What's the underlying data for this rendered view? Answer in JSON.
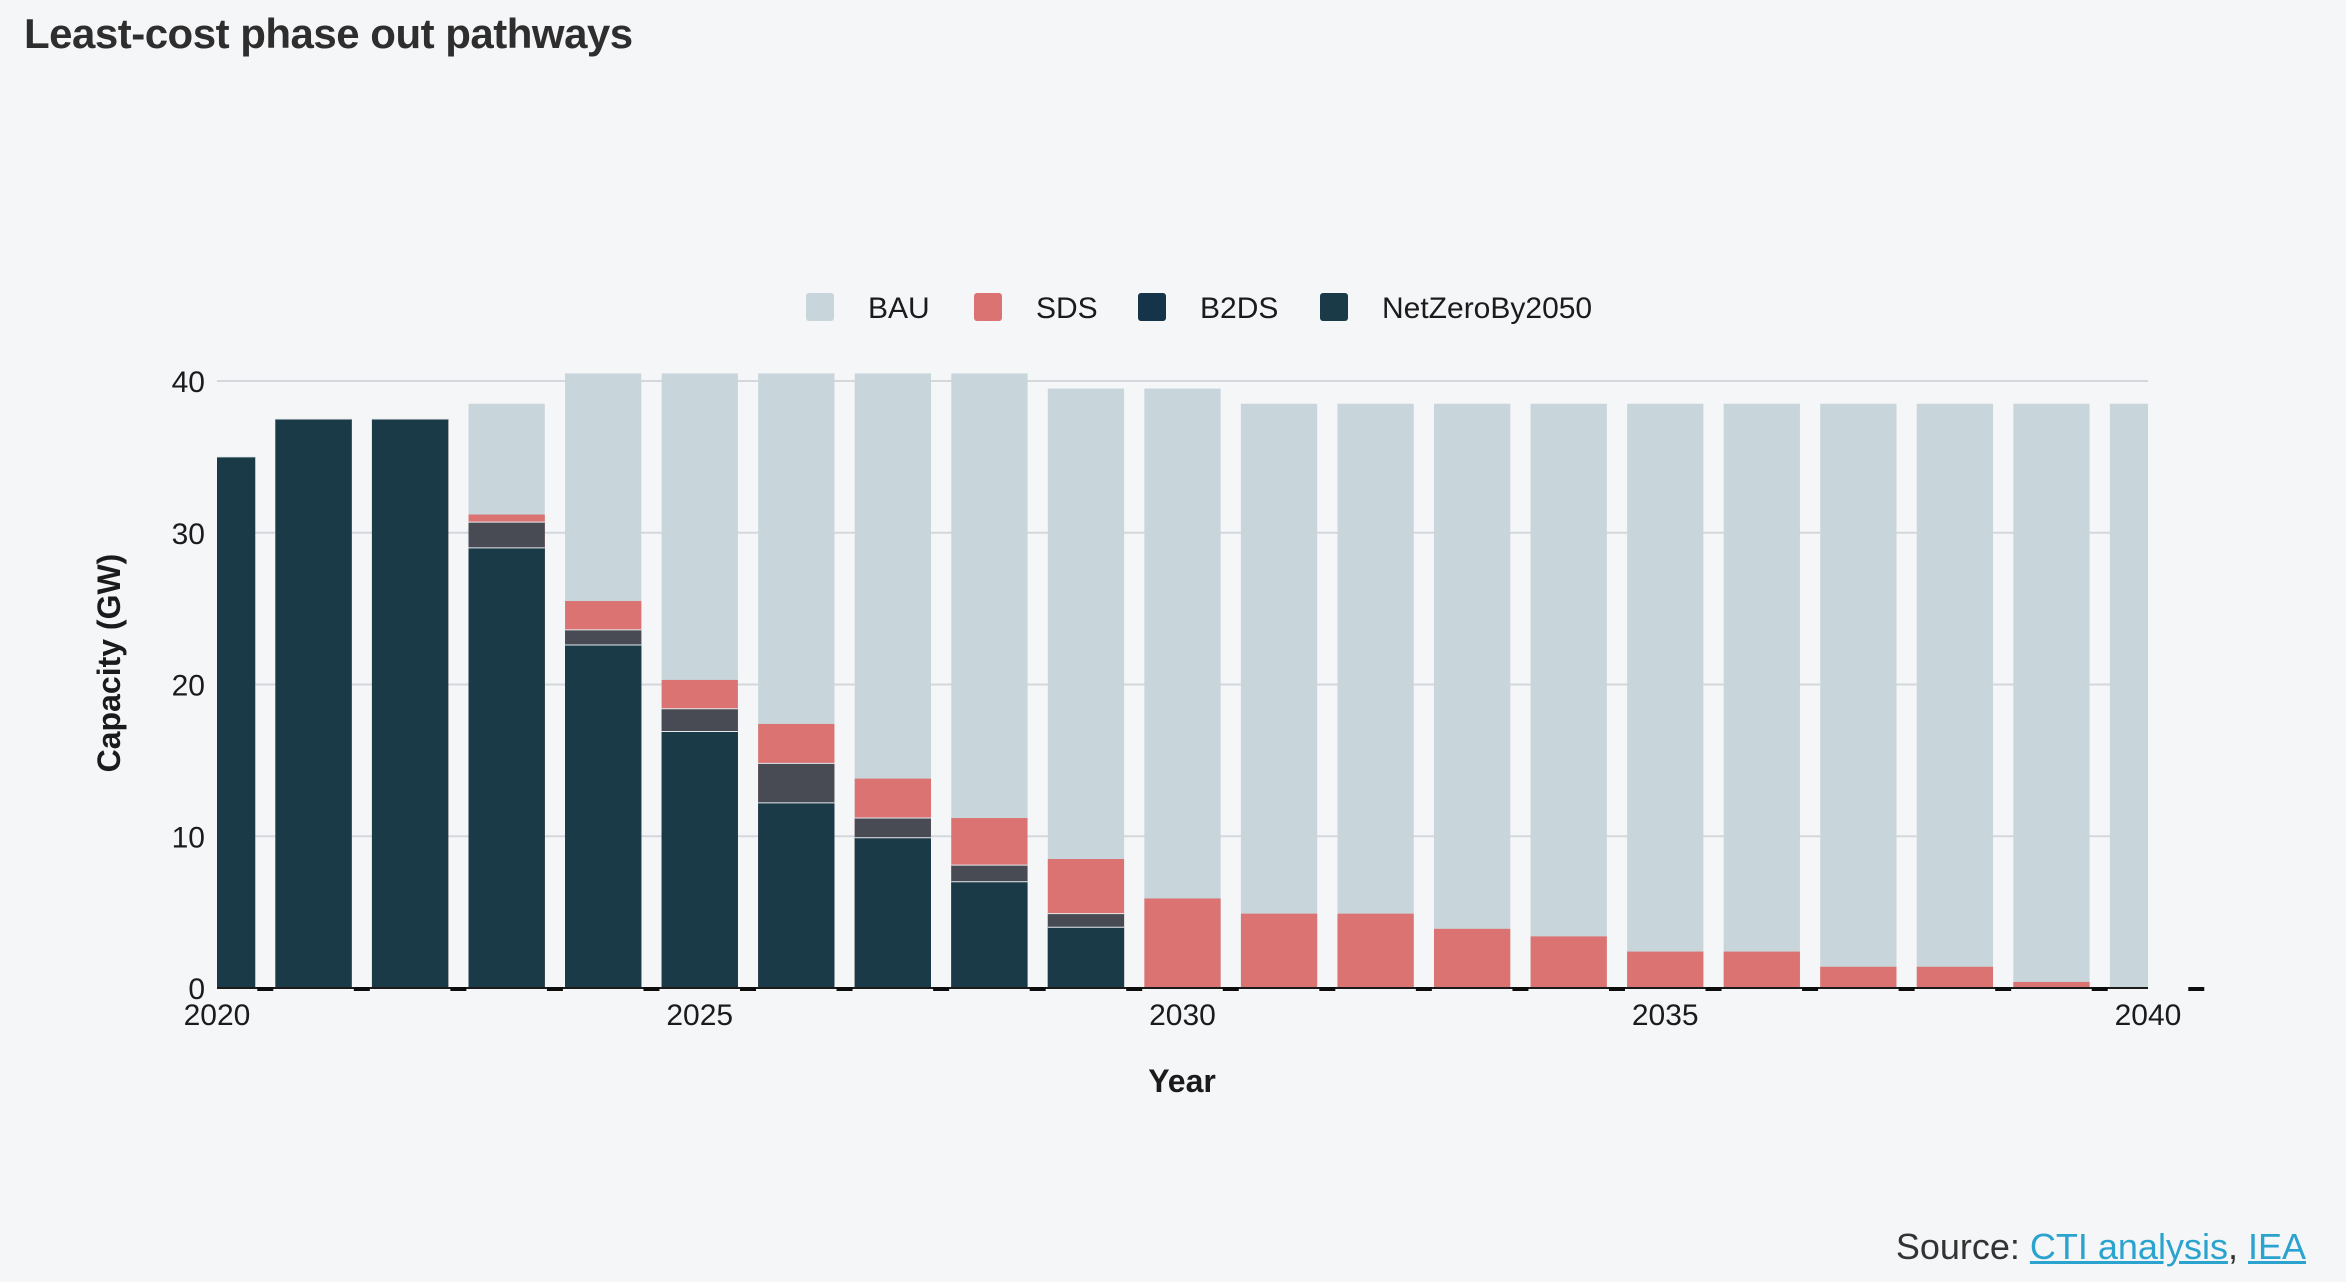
{
  "title": "Least-cost phase out pathways",
  "source": {
    "prefix": "Source: ",
    "links": [
      {
        "label": "CTI analysis"
      },
      {
        "label": "IEA"
      }
    ],
    "separator": ", "
  },
  "colors": {
    "BAU": "#c8d6dc",
    "SDS": "#db7372",
    "B2DS": "#484b54",
    "NetZeroBy2050": "#1b3a47",
    "legend_B2DS": "#163449",
    "grid": "#d4d8dc",
    "text": "#1b1b1b"
  },
  "chart_data": {
    "type": "bar",
    "stacking": "overlay",
    "xlabel": "Year",
    "ylabel": "Capacity (GW)",
    "xlim": [
      2020,
      2040
    ],
    "ylim": [
      0,
      40
    ],
    "xticks": [
      2020,
      2025,
      2030,
      2035,
      2040
    ],
    "yticks": [
      0,
      10,
      20,
      30,
      40
    ],
    "grid": true,
    "legend_position": "top-center",
    "legend": [
      "BAU",
      "SDS",
      "B2DS",
      "NetZeroBy2050"
    ],
    "x": [
      2020,
      2021,
      2022,
      2023,
      2024,
      2025,
      2026,
      2027,
      2028,
      2029,
      2030,
      2031,
      2032,
      2033,
      2034,
      2035,
      2036,
      2037,
      2038,
      2039,
      2040
    ],
    "series": [
      {
        "name": "BAU",
        "values": [
          35,
          37.5,
          37.5,
          38.5,
          40.5,
          40.5,
          40.5,
          40.5,
          40.5,
          39.5,
          39.5,
          38.5,
          38.5,
          38.5,
          38.5,
          38.5,
          38.5,
          38.5,
          38.5,
          38.5,
          38.5
        ]
      },
      {
        "name": "SDS",
        "values": [
          35,
          37.5,
          37.5,
          31.2,
          25.5,
          20.3,
          17.4,
          13.8,
          11.2,
          8.5,
          5.9,
          4.9,
          4.9,
          3.9,
          3.4,
          2.4,
          2.4,
          1.4,
          1.4,
          0.4,
          0
        ]
      },
      {
        "name": "B2DS",
        "values": [
          35,
          37.5,
          37.5,
          30.7,
          23.6,
          18.4,
          14.8,
          11.2,
          8.1,
          4.9,
          0,
          0,
          0,
          0,
          0,
          0,
          0,
          0,
          0,
          0,
          0
        ]
      },
      {
        "name": "NetZeroBy2050",
        "values": [
          35,
          37.5,
          37.5,
          29.0,
          22.6,
          16.9,
          12.2,
          9.9,
          7.0,
          4.0,
          0,
          0,
          0,
          0,
          0,
          0,
          0,
          0,
          0,
          0,
          0
        ]
      }
    ]
  }
}
